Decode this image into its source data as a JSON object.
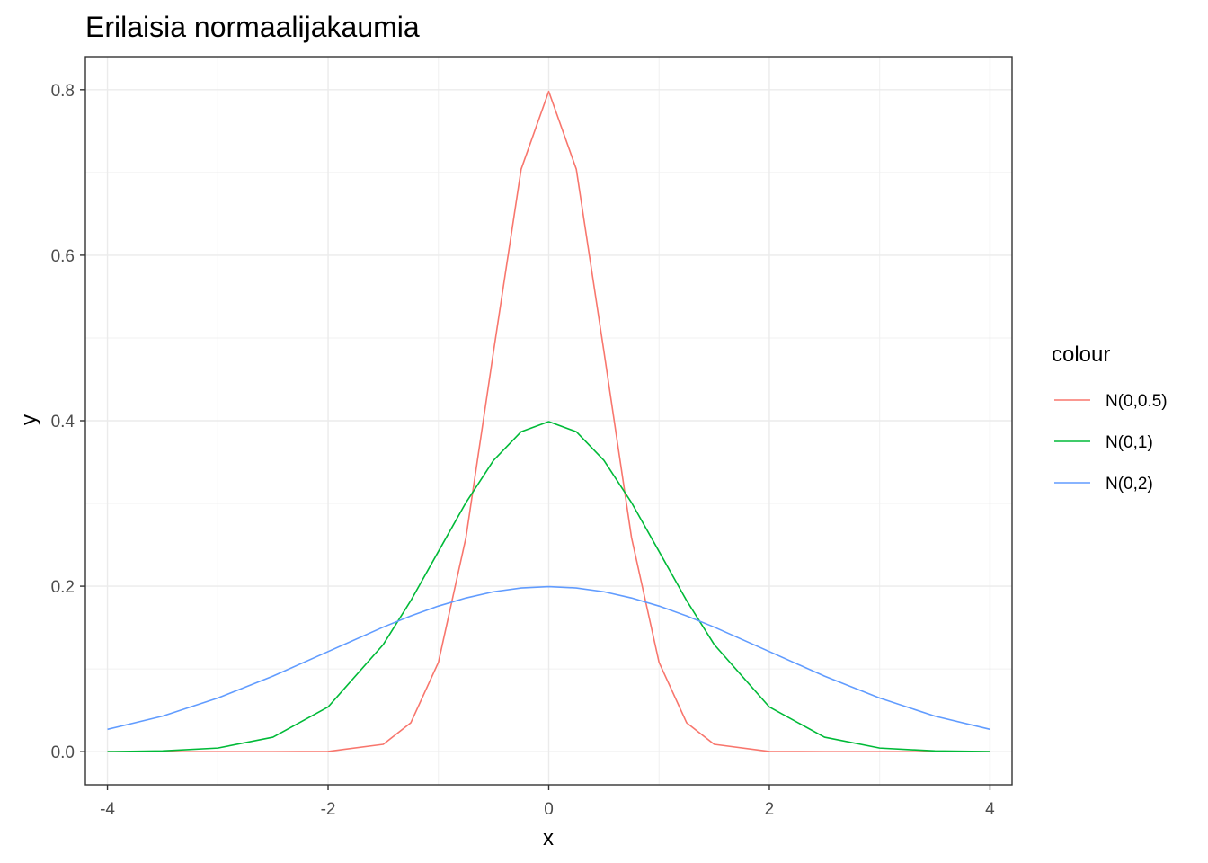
{
  "chart_data": {
    "type": "line",
    "title": "Erilaisia normaalijakaumia",
    "xlabel": "x",
    "ylabel": "y",
    "xlim": [
      -4.2,
      4.2
    ],
    "ylim": [
      -0.04,
      0.84
    ],
    "x_ticks": [
      -4,
      -2,
      0,
      2,
      4
    ],
    "x_tick_labels": [
      "-4",
      "-2",
      "0",
      "2",
      "4"
    ],
    "x_minor": [
      -3,
      -1,
      1,
      3
    ],
    "y_ticks": [
      0.0,
      0.2,
      0.4,
      0.6,
      0.8
    ],
    "y_tick_labels": [
      "0.0",
      "0.2",
      "0.4",
      "0.6",
      "0.8"
    ],
    "y_minor": [
      0.1,
      0.3,
      0.5,
      0.7
    ],
    "grid": true,
    "legend": {
      "title": "colour",
      "position": "right"
    },
    "x": [
      -4.0,
      -3.5,
      -3.0,
      -2.5,
      -2.0,
      -1.5,
      -1.25,
      -1.0,
      -0.75,
      -0.5,
      -0.25,
      0.0,
      0.25,
      0.5,
      0.75,
      1.0,
      1.25,
      1.5,
      2.0,
      2.5,
      3.0,
      3.5,
      4.0
    ],
    "series": [
      {
        "name": "N(0,0.5)",
        "color": "#F8766D",
        "values": [
          0.0,
          0.0,
          0.0,
          0.0,
          0.0003,
          0.0089,
          0.035,
          0.108,
          0.259,
          0.484,
          0.704,
          0.798,
          0.704,
          0.484,
          0.259,
          0.108,
          0.035,
          0.0089,
          0.0003,
          0.0,
          0.0,
          0.0,
          0.0
        ]
      },
      {
        "name": "N(0,1)",
        "color": "#00BA38",
        "values": [
          0.0001,
          0.0009,
          0.0044,
          0.0175,
          0.054,
          0.1295,
          0.1826,
          0.242,
          0.3011,
          0.3521,
          0.3867,
          0.3989,
          0.3867,
          0.3521,
          0.3011,
          0.242,
          0.1826,
          0.1295,
          0.054,
          0.0175,
          0.0044,
          0.0009,
          0.0001
        ]
      },
      {
        "name": "N(0,2)",
        "color": "#619CFF",
        "values": [
          0.027,
          0.043,
          0.0648,
          0.0913,
          0.121,
          0.1506,
          0.1641,
          0.176,
          0.1858,
          0.1933,
          0.1979,
          0.1995,
          0.1979,
          0.1933,
          0.1858,
          0.176,
          0.1641,
          0.1506,
          0.121,
          0.0913,
          0.0648,
          0.043,
          0.027
        ]
      }
    ]
  }
}
